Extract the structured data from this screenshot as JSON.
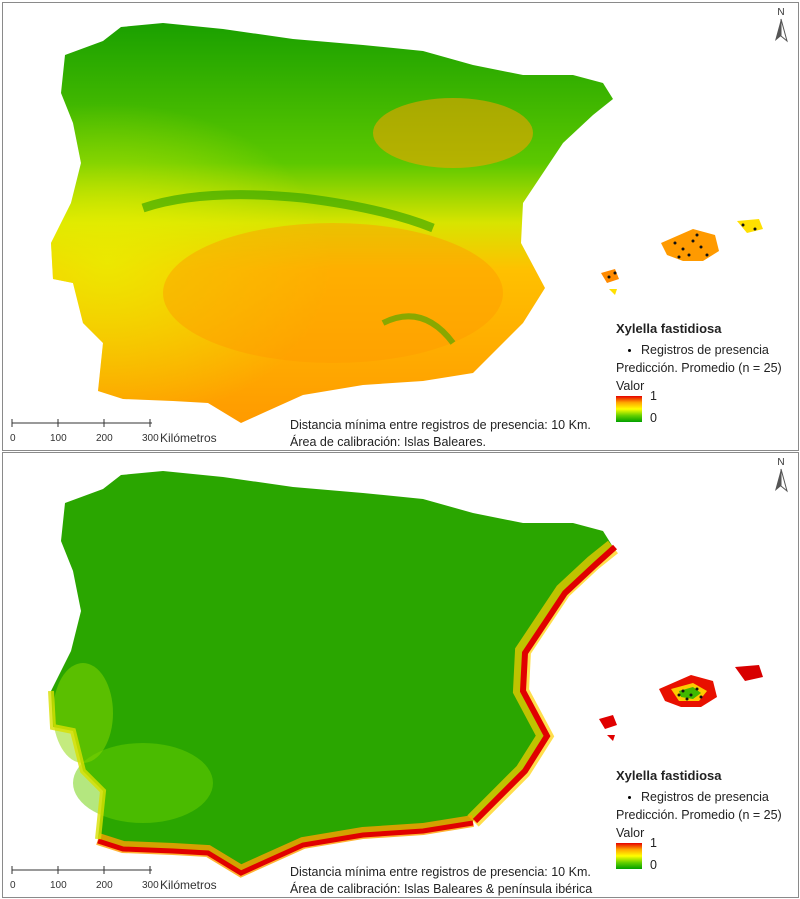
{
  "north_label": "N",
  "panels": [
    {
      "species": "Xylella fastidiosa",
      "points_label": "Registros de presencia",
      "prediction_label": "Predicción. Promedio (n = 25)",
      "value_label": "Valor",
      "value_high": "1",
      "value_low": "0",
      "distance_note": "Distancia mínima entre registros de presencia: 10 Km.",
      "calibration_note": "Área de calibración: Islas Baleares.",
      "scale_ticks": [
        "0",
        "100",
        "200",
        "300"
      ],
      "scale_unit": "Kilómetros",
      "colors": {
        "north": "#22a000",
        "center": "#ffb000",
        "coast": "#ff8a00",
        "islands": "#ff9a00"
      }
    },
    {
      "species": "Xylella fastidiosa",
      "points_label": "Registros de presencia",
      "prediction_label": "Predicción. Promedio (n = 25)",
      "value_label": "Valor",
      "value_high": "1",
      "value_low": "0",
      "distance_note": "Distancia mínima entre registros de presencia: 10 Km.",
      "calibration_note": "Área de calibración: Islas Baleares & península ibérica",
      "scale_ticks": [
        "0",
        "100",
        "200",
        "300"
      ],
      "scale_unit": "Kilómetros",
      "colors": {
        "north": "#1ea000",
        "center": "#28a800",
        "coast": "#e00000",
        "islands": "#e01000"
      }
    }
  ]
}
